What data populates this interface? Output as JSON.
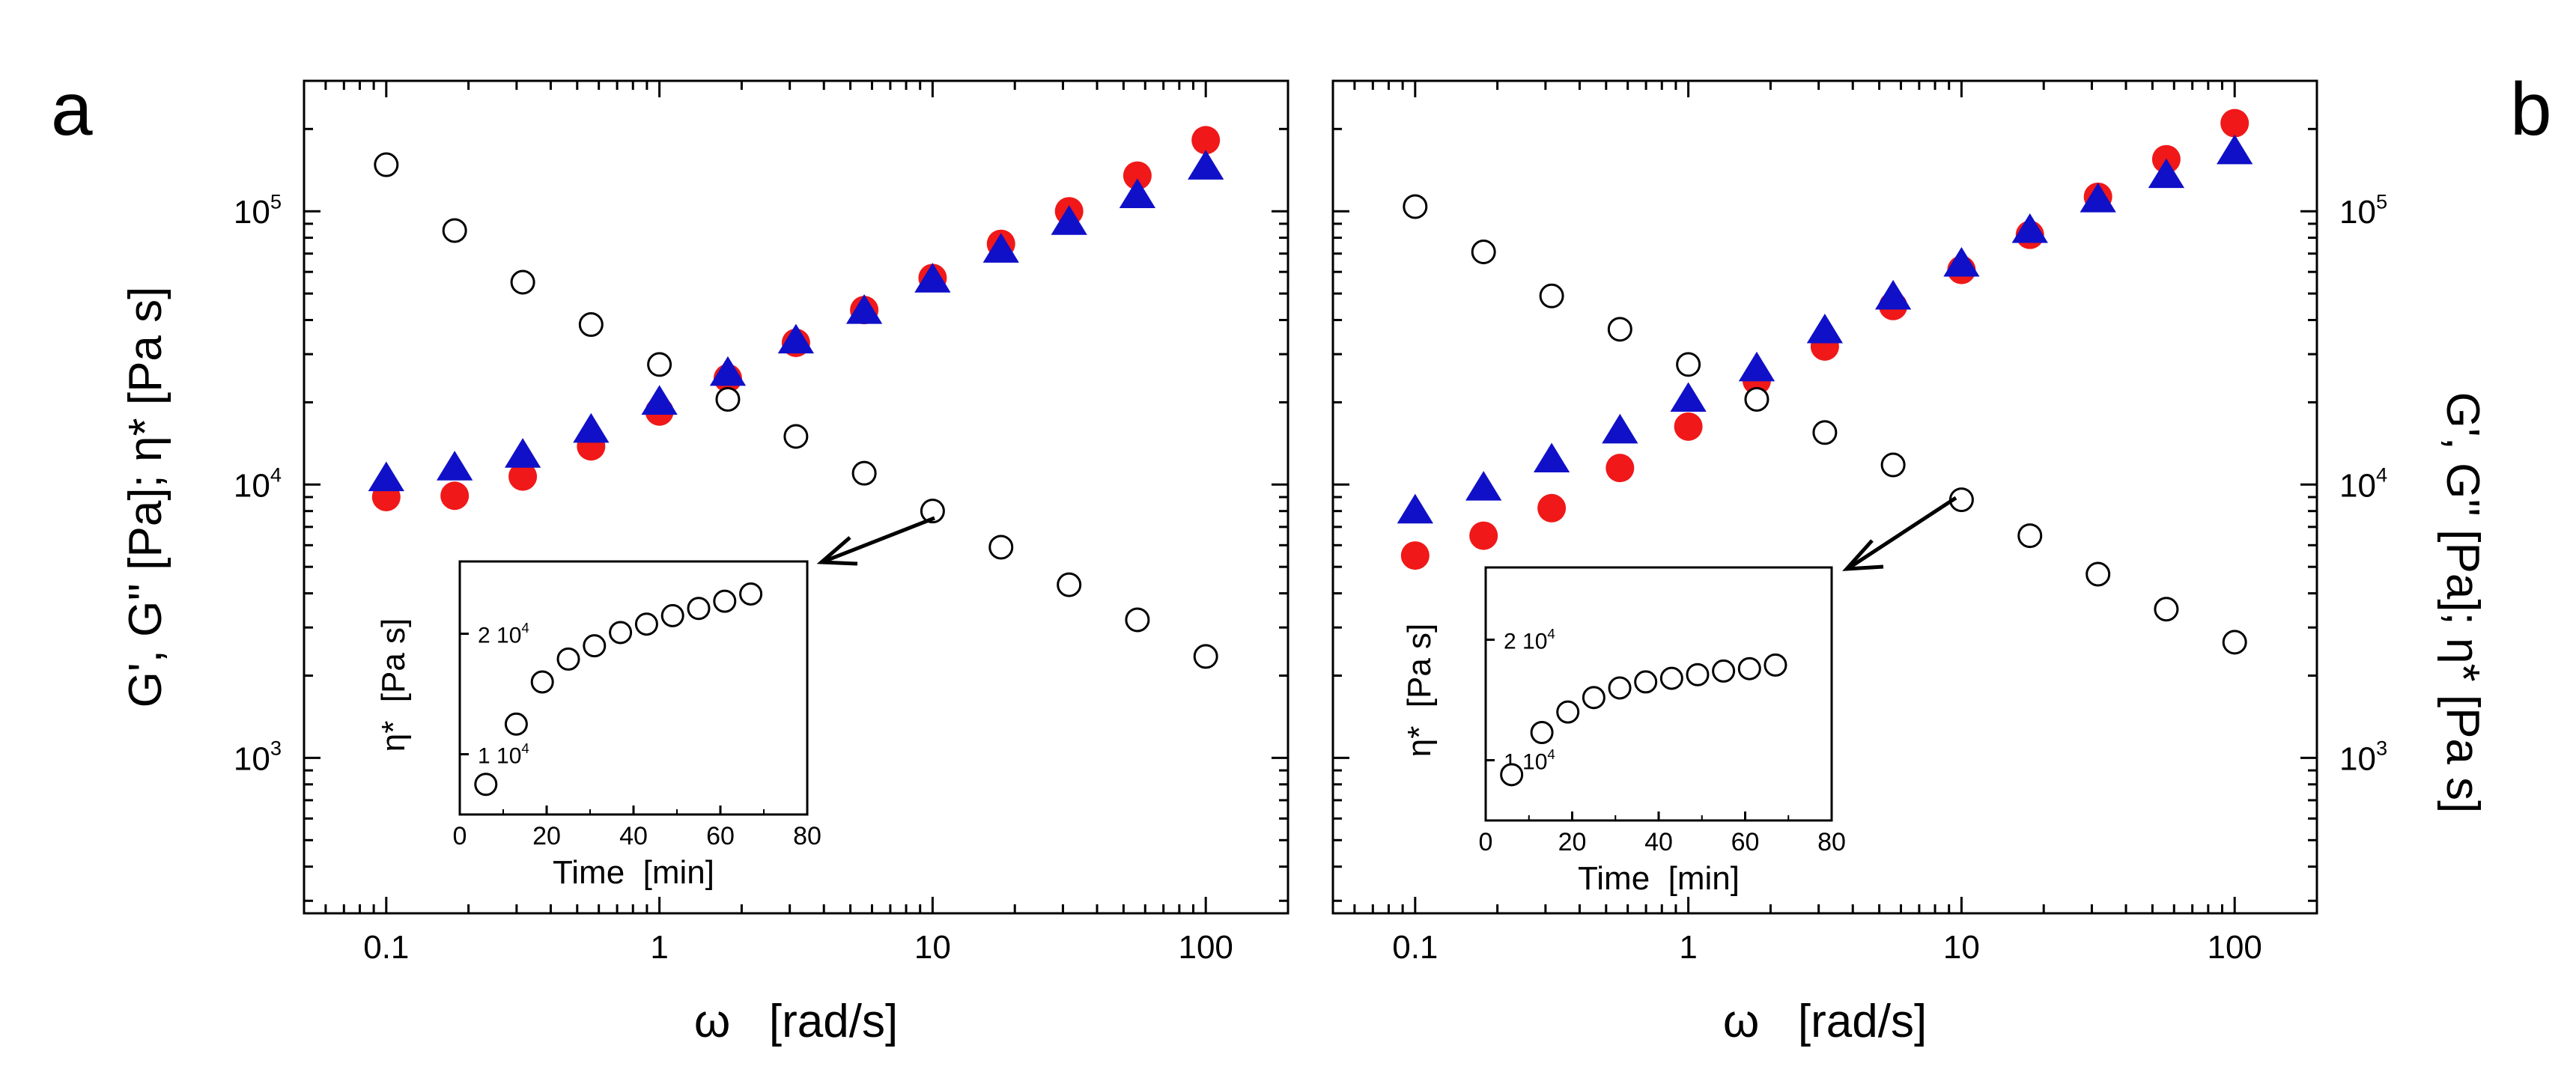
{
  "colors": {
    "gprime": "#1010c8",
    "gdouble": "#f01818",
    "eta": "#000000",
    "frame": "#000000"
  },
  "chart_data": [
    {
      "type": "scatter",
      "panel_label": "a",
      "xlabel": "ω   [rad/s]",
      "ylabel": "G', G'' [Pa]; η* [Pa s]",
      "xscale": "log",
      "yscale": "log",
      "xlim": [
        0.05,
        200
      ],
      "ylim": [
        270,
        300000
      ],
      "x_ticks": [
        0.1,
        1,
        10,
        100
      ],
      "x_tick_labels": [
        "0.1",
        "1",
        "10",
        "100"
      ],
      "y_ticks": [
        1000,
        10000,
        100000
      ],
      "y_tick_labels": [
        {
          "base": "10",
          "exp": "3"
        },
        {
          "base": "10",
          "exp": "4"
        },
        {
          "base": "10",
          "exp": "5"
        }
      ],
      "series": [
        {
          "name": "G'",
          "marker": "triangle",
          "color": "#1010c8",
          "points": [
            [
              0.1,
              10500
            ],
            [
              0.178,
              11500
            ],
            [
              0.316,
              12800
            ],
            [
              0.562,
              15800
            ],
            [
              1.0,
              20000
            ],
            [
              1.78,
              25500
            ],
            [
              3.16,
              33500
            ],
            [
              5.62,
              43000
            ],
            [
              10,
              56000
            ],
            [
              17.8,
              72000
            ],
            [
              31.6,
              91000
            ],
            [
              56.2,
              114000
            ],
            [
              100,
              145000
            ]
          ]
        },
        {
          "name": "G''",
          "marker": "filled-circle",
          "color": "#f01818",
          "points": [
            [
              0.1,
              9000
            ],
            [
              0.178,
              9100
            ],
            [
              0.316,
              10700
            ],
            [
              0.562,
              13800
            ],
            [
              1.0,
              18500
            ],
            [
              1.78,
              24500
            ],
            [
              3.16,
              33000
            ],
            [
              5.62,
              43500
            ],
            [
              10,
              57000
            ],
            [
              17.8,
              76000
            ],
            [
              31.6,
              100000
            ],
            [
              56.2,
              135000
            ],
            [
              100,
              182000
            ]
          ]
        },
        {
          "name": "η*",
          "marker": "open-circle",
          "color": "#000000",
          "points": [
            [
              0.1,
              148000
            ],
            [
              0.178,
              85000
            ],
            [
              0.316,
              55000
            ],
            [
              0.562,
              38500
            ],
            [
              1.0,
              27500
            ],
            [
              1.78,
              20500
            ],
            [
              3.16,
              15000
            ],
            [
              5.62,
              11000
            ],
            [
              10,
              8000
            ],
            [
              17.8,
              5900
            ],
            [
              31.6,
              4300
            ],
            [
              56.2,
              3200
            ],
            [
              100,
              2350
            ]
          ]
        }
      ],
      "inset": {
        "xlabel": "Time  [min]",
        "ylabel": "η*  [Pa s]",
        "xlim": [
          0,
          80
        ],
        "ylim": [
          5000,
          26000
        ],
        "x_ticks": [
          0,
          20,
          40,
          60,
          80
        ],
        "x_tick_labels": [
          "0",
          "20",
          "40",
          "60",
          "80"
        ],
        "y_ticks": [
          10000,
          20000
        ],
        "y_tick_labels": [
          {
            "base": "1 10",
            "exp": "4"
          },
          {
            "base": "2 10",
            "exp": "4"
          }
        ],
        "points": [
          [
            6,
            7500
          ],
          [
            13,
            12500
          ],
          [
            19,
            16000
          ],
          [
            25,
            17900
          ],
          [
            31,
            19000
          ],
          [
            37,
            20100
          ],
          [
            43,
            20800
          ],
          [
            49,
            21500
          ],
          [
            55,
            22100
          ],
          [
            61,
            22700
          ],
          [
            67,
            23300
          ]
        ]
      }
    },
    {
      "type": "scatter",
      "panel_label": "b",
      "xlabel": "ω   [rad/s]",
      "ylabel": "G', G'' [Pa]; η* [Pa s]",
      "xscale": "log",
      "yscale": "log",
      "xlim": [
        0.05,
        200
      ],
      "ylim": [
        270,
        300000
      ],
      "x_ticks": [
        0.1,
        1,
        10,
        100
      ],
      "x_tick_labels": [
        "0.1",
        "1",
        "10",
        "100"
      ],
      "y_ticks": [
        1000,
        10000,
        100000
      ],
      "y_tick_labels": [
        {
          "base": "10",
          "exp": "3"
        },
        {
          "base": "10",
          "exp": "4"
        },
        {
          "base": "10",
          "exp": "5"
        }
      ],
      "series": [
        {
          "name": "G'",
          "marker": "triangle",
          "color": "#1010c8",
          "points": [
            [
              0.1,
              8000
            ],
            [
              0.178,
              9700
            ],
            [
              0.316,
              12300
            ],
            [
              0.562,
              15700
            ],
            [
              1.0,
              20500
            ],
            [
              1.78,
              26500
            ],
            [
              3.16,
              36500
            ],
            [
              5.62,
              48500
            ],
            [
              10,
              64000
            ],
            [
              17.8,
              85000
            ],
            [
              31.6,
              110000
            ],
            [
              56.2,
              135000
            ],
            [
              100,
              165000
            ]
          ]
        },
        {
          "name": "G''",
          "marker": "filled-circle",
          "color": "#f01818",
          "points": [
            [
              0.1,
              5500
            ],
            [
              0.178,
              6500
            ],
            [
              0.316,
              8200
            ],
            [
              0.562,
              11500
            ],
            [
              1.0,
              16300
            ],
            [
              1.78,
              24000
            ],
            [
              3.16,
              32000
            ],
            [
              5.62,
              45000
            ],
            [
              10,
              61000
            ],
            [
              17.8,
              82000
            ],
            [
              31.6,
              113000
            ],
            [
              56.2,
              155000
            ],
            [
              100,
              210000
            ]
          ]
        },
        {
          "name": "η*",
          "marker": "open-circle",
          "color": "#000000",
          "points": [
            [
              0.1,
              104000
            ],
            [
              0.178,
              71000
            ],
            [
              0.316,
              49000
            ],
            [
              0.562,
              37000
            ],
            [
              1.0,
              27500
            ],
            [
              1.78,
              20500
            ],
            [
              3.16,
              15500
            ],
            [
              5.62,
              11800
            ],
            [
              10,
              8800
            ],
            [
              17.8,
              6500
            ],
            [
              31.6,
              4700
            ],
            [
              56.2,
              3500
            ],
            [
              100,
              2650
            ]
          ]
        }
      ],
      "inset": {
        "xlabel": "Time  [min]",
        "ylabel": "η*  [Pa s]",
        "xlim": [
          0,
          80
        ],
        "ylim": [
          5000,
          26000
        ],
        "x_ticks": [
          0,
          20,
          40,
          60,
          80
        ],
        "x_tick_labels": [
          "0",
          "20",
          "40",
          "60",
          "80"
        ],
        "y_ticks": [
          10000,
          20000
        ],
        "y_tick_labels": [
          {
            "base": "1 10",
            "exp": "4"
          },
          {
            "base": "2 10",
            "exp": "4"
          }
        ],
        "points": [
          [
            6,
            8800
          ],
          [
            13,
            12300
          ],
          [
            19,
            14000
          ],
          [
            25,
            15200
          ],
          [
            31,
            16000
          ],
          [
            37,
            16500
          ],
          [
            43,
            16800
          ],
          [
            49,
            17100
          ],
          [
            55,
            17400
          ],
          [
            61,
            17600
          ],
          [
            67,
            17900
          ]
        ]
      }
    }
  ]
}
